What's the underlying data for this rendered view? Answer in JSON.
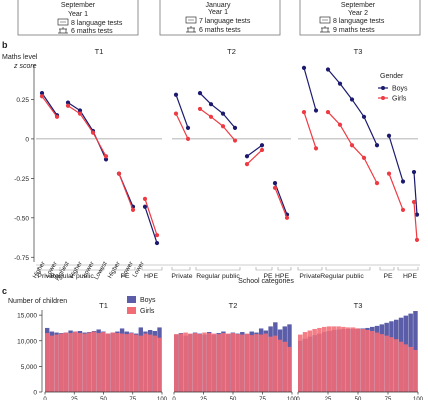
{
  "header_boxes": [
    {
      "lines": [
        "September",
        "Year 1"
      ],
      "lang": "8 language tests",
      "math": "6 maths tests"
    },
    {
      "lines": [
        "January",
        "Year 1"
      ],
      "lang": "7 language tests",
      "math": "6 maths tests"
    },
    {
      "lines": [
        "September",
        "Year 2"
      ],
      "lang": "8 language tests",
      "math": "9 maths tests"
    }
  ],
  "panel_b": {
    "label": "b",
    "ylabel1": "Maths level",
    "ylabel2": "z score",
    "legend_title": "Gender",
    "xlabel": "School categories"
  },
  "panel_c": {
    "label": "c",
    "ylabel": "Number of children"
  },
  "colors": {
    "boys": "#1b1a6e",
    "girls": "#ee3b43",
    "boys_bar": "#5b5da8",
    "girls_bar": "#f26c75"
  },
  "chart_data": [
    {
      "type": "line",
      "subplots": [
        "T1",
        "T2",
        "T3"
      ],
      "categories": [
        "Private",
        "Regular public",
        "PE",
        "HPE"
      ],
      "sub_labels": [
        "Higher",
        "Lower",
        "Highest",
        "Higher",
        "Lower",
        "Lowest",
        "Higher",
        "Lower",
        "Lower"
      ],
      "series": [
        {
          "name": "Boys",
          "values": [
            [
              0.29,
              0.15,
              0.23,
              0.18,
              0.05,
              -0.13,
              -0.22,
              -0.43,
              -0.43,
              -0.66
            ],
            [
              0.28,
              0.07,
              0.29,
              0.22,
              0.16,
              0.07,
              -0.11,
              -0.04,
              -0.28,
              -0.48
            ],
            [
              0.45,
              0.18,
              0.44,
              0.35,
              0.25,
              0.14,
              -0.04,
              0.02,
              -0.27,
              -0.21,
              -0.48
            ]
          ]
        },
        {
          "name": "Girls",
          "values": [
            [
              0.27,
              0.14,
              0.21,
              0.16,
              0.04,
              -0.11,
              -0.22,
              -0.45,
              -0.38,
              -0.61
            ],
            [
              0.16,
              0,
              0.19,
              0.14,
              0.08,
              -0.01,
              -0.16,
              -0.07,
              -0.31,
              -0.5
            ],
            [
              0.17,
              -0.06,
              0.17,
              0.09,
              -0.04,
              -0.12,
              -0.28,
              -0.22,
              -0.45,
              -0.4,
              -0.64
            ]
          ]
        }
      ],
      "ylim": [
        -0.78,
        0.5
      ],
      "yticks": [
        0.25,
        0,
        -0.25,
        -0.5,
        -0.75
      ],
      "ytick_labels": [
        "0.25",
        "0",
        "-0.25",
        "-0.50",
        "-0.75"
      ],
      "legend": [
        "Boys",
        "Girls"
      ],
      "legend_position": "right"
    },
    {
      "type": "bar",
      "subplots": [
        "T1",
        "T2",
        "T3"
      ],
      "series": [
        {
          "name": "Boys",
          "values": [
            [
              12500,
              11800,
              11600,
              11500,
              11600,
              12000,
              11800,
              11900,
              11600,
              11700,
              11900,
              12200,
              11800,
              11400,
              11600,
              11800,
              12400,
              11800,
              11600,
              11400,
              12600,
              11800,
              12100,
              11900,
              12600
            ],
            [
              11200,
              11500,
              11000,
              11300,
              11600,
              11400,
              11200,
              11700,
              11200,
              11500,
              11800,
              11300,
              11600,
              11400,
              11700,
              11300,
              11800,
              11600,
              12400,
              12000,
              12800,
              13600,
              12200,
              12800,
              13200
            ],
            [
              10000,
              10400,
              10800,
              11100,
              11400,
              11700,
              11900,
              12100,
              12200,
              12300,
              12300,
              12300,
              12400,
              12400,
              12500,
              12700,
              12900,
              13200,
              13500,
              13800,
              14100,
              14500,
              14900,
              15300,
              15800
            ]
          ]
        },
        {
          "name": "Girls",
          "values": [
            [
              11500,
              11000,
              11200,
              11400,
              11600,
              11500,
              11800,
              11500,
              11400,
              11600,
              11800,
              11500,
              11700,
              11400,
              11600,
              11500,
              11400,
              11300,
              11500,
              11200,
              11000,
              11400,
              11200,
              11000,
              10600
            ],
            [
              11300,
              11400,
              11600,
              11400,
              11500,
              11300,
              11600,
              11500,
              11400,
              11300,
              11500,
              11400,
              11500,
              11300,
              11200,
              11400,
              11100,
              11300,
              11200,
              11400,
              10800,
              11000,
              10200,
              9800,
              8800
            ],
            [
              11200,
              11700,
              12000,
              12300,
              12500,
              12700,
              12800,
              12800,
              12800,
              12700,
              12600,
              12600,
              12400,
              12300,
              12100,
              11900,
              11600,
              11300,
              11000,
              10700,
              10300,
              9800,
              9300,
              8800,
              8200
            ]
          ]
        }
      ],
      "ylim": [
        0,
        16000
      ],
      "yticks": [
        0,
        5000,
        10000,
        15000
      ],
      "ytick_labels": [
        "0",
        "5,000",
        "10,000",
        "15,000"
      ],
      "xtick_labels": [
        "0",
        "25",
        "50",
        "75",
        "100"
      ],
      "legend": [
        "Boys",
        "Girls"
      ],
      "legend_position": "top-left"
    }
  ]
}
